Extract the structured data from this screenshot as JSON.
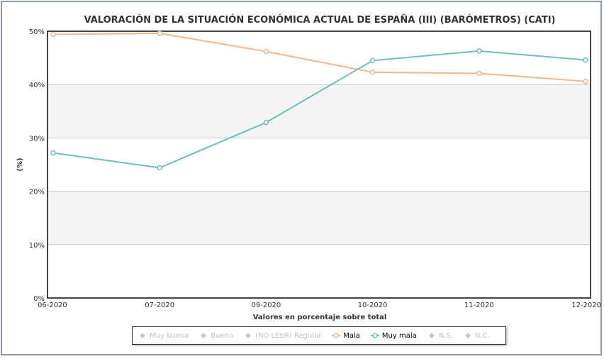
{
  "chart_data": {
    "type": "line",
    "title": "VALORACIÓN DE LA SITUACIÓN ECONÓMICA ACTUAL DE ESPAÑA (III) (BARÓMETROS) (CATI)",
    "xlabel": "Valores en porcentaje sobre total",
    "ylabel": "(%)",
    "categories": [
      "06-2020",
      "07-2020",
      "09-2020",
      "10-2020",
      "11-2020",
      "12-2020"
    ],
    "ylim": [
      0,
      50
    ],
    "yticks": [
      "0%",
      "10%",
      "20%",
      "30%",
      "40%",
      "50%"
    ],
    "grid": true,
    "legend_position": "bottom",
    "series": [
      {
        "name": "Mala",
        "color": "#f5b58a",
        "values": [
          49.4,
          49.6,
          46.2,
          42.3,
          42.1,
          40.6
        ],
        "visible": true
      },
      {
        "name": "Muy mala",
        "color": "#6cbfc0",
        "values": [
          27.2,
          24.4,
          32.9,
          44.5,
          46.3,
          44.6
        ],
        "visible": true
      }
    ],
    "legend": [
      {
        "name": "Muy buena",
        "visible": false
      },
      {
        "name": "Buena",
        "visible": false
      },
      {
        "name": "(NO LEER) Regular",
        "visible": false
      },
      {
        "name": "Mala",
        "visible": true,
        "color": "#f5b58a"
      },
      {
        "name": "Muy mala",
        "visible": true,
        "color": "#6cbfc0"
      },
      {
        "name": "N.S.",
        "visible": false
      },
      {
        "name": "N.C.",
        "visible": false
      }
    ]
  }
}
